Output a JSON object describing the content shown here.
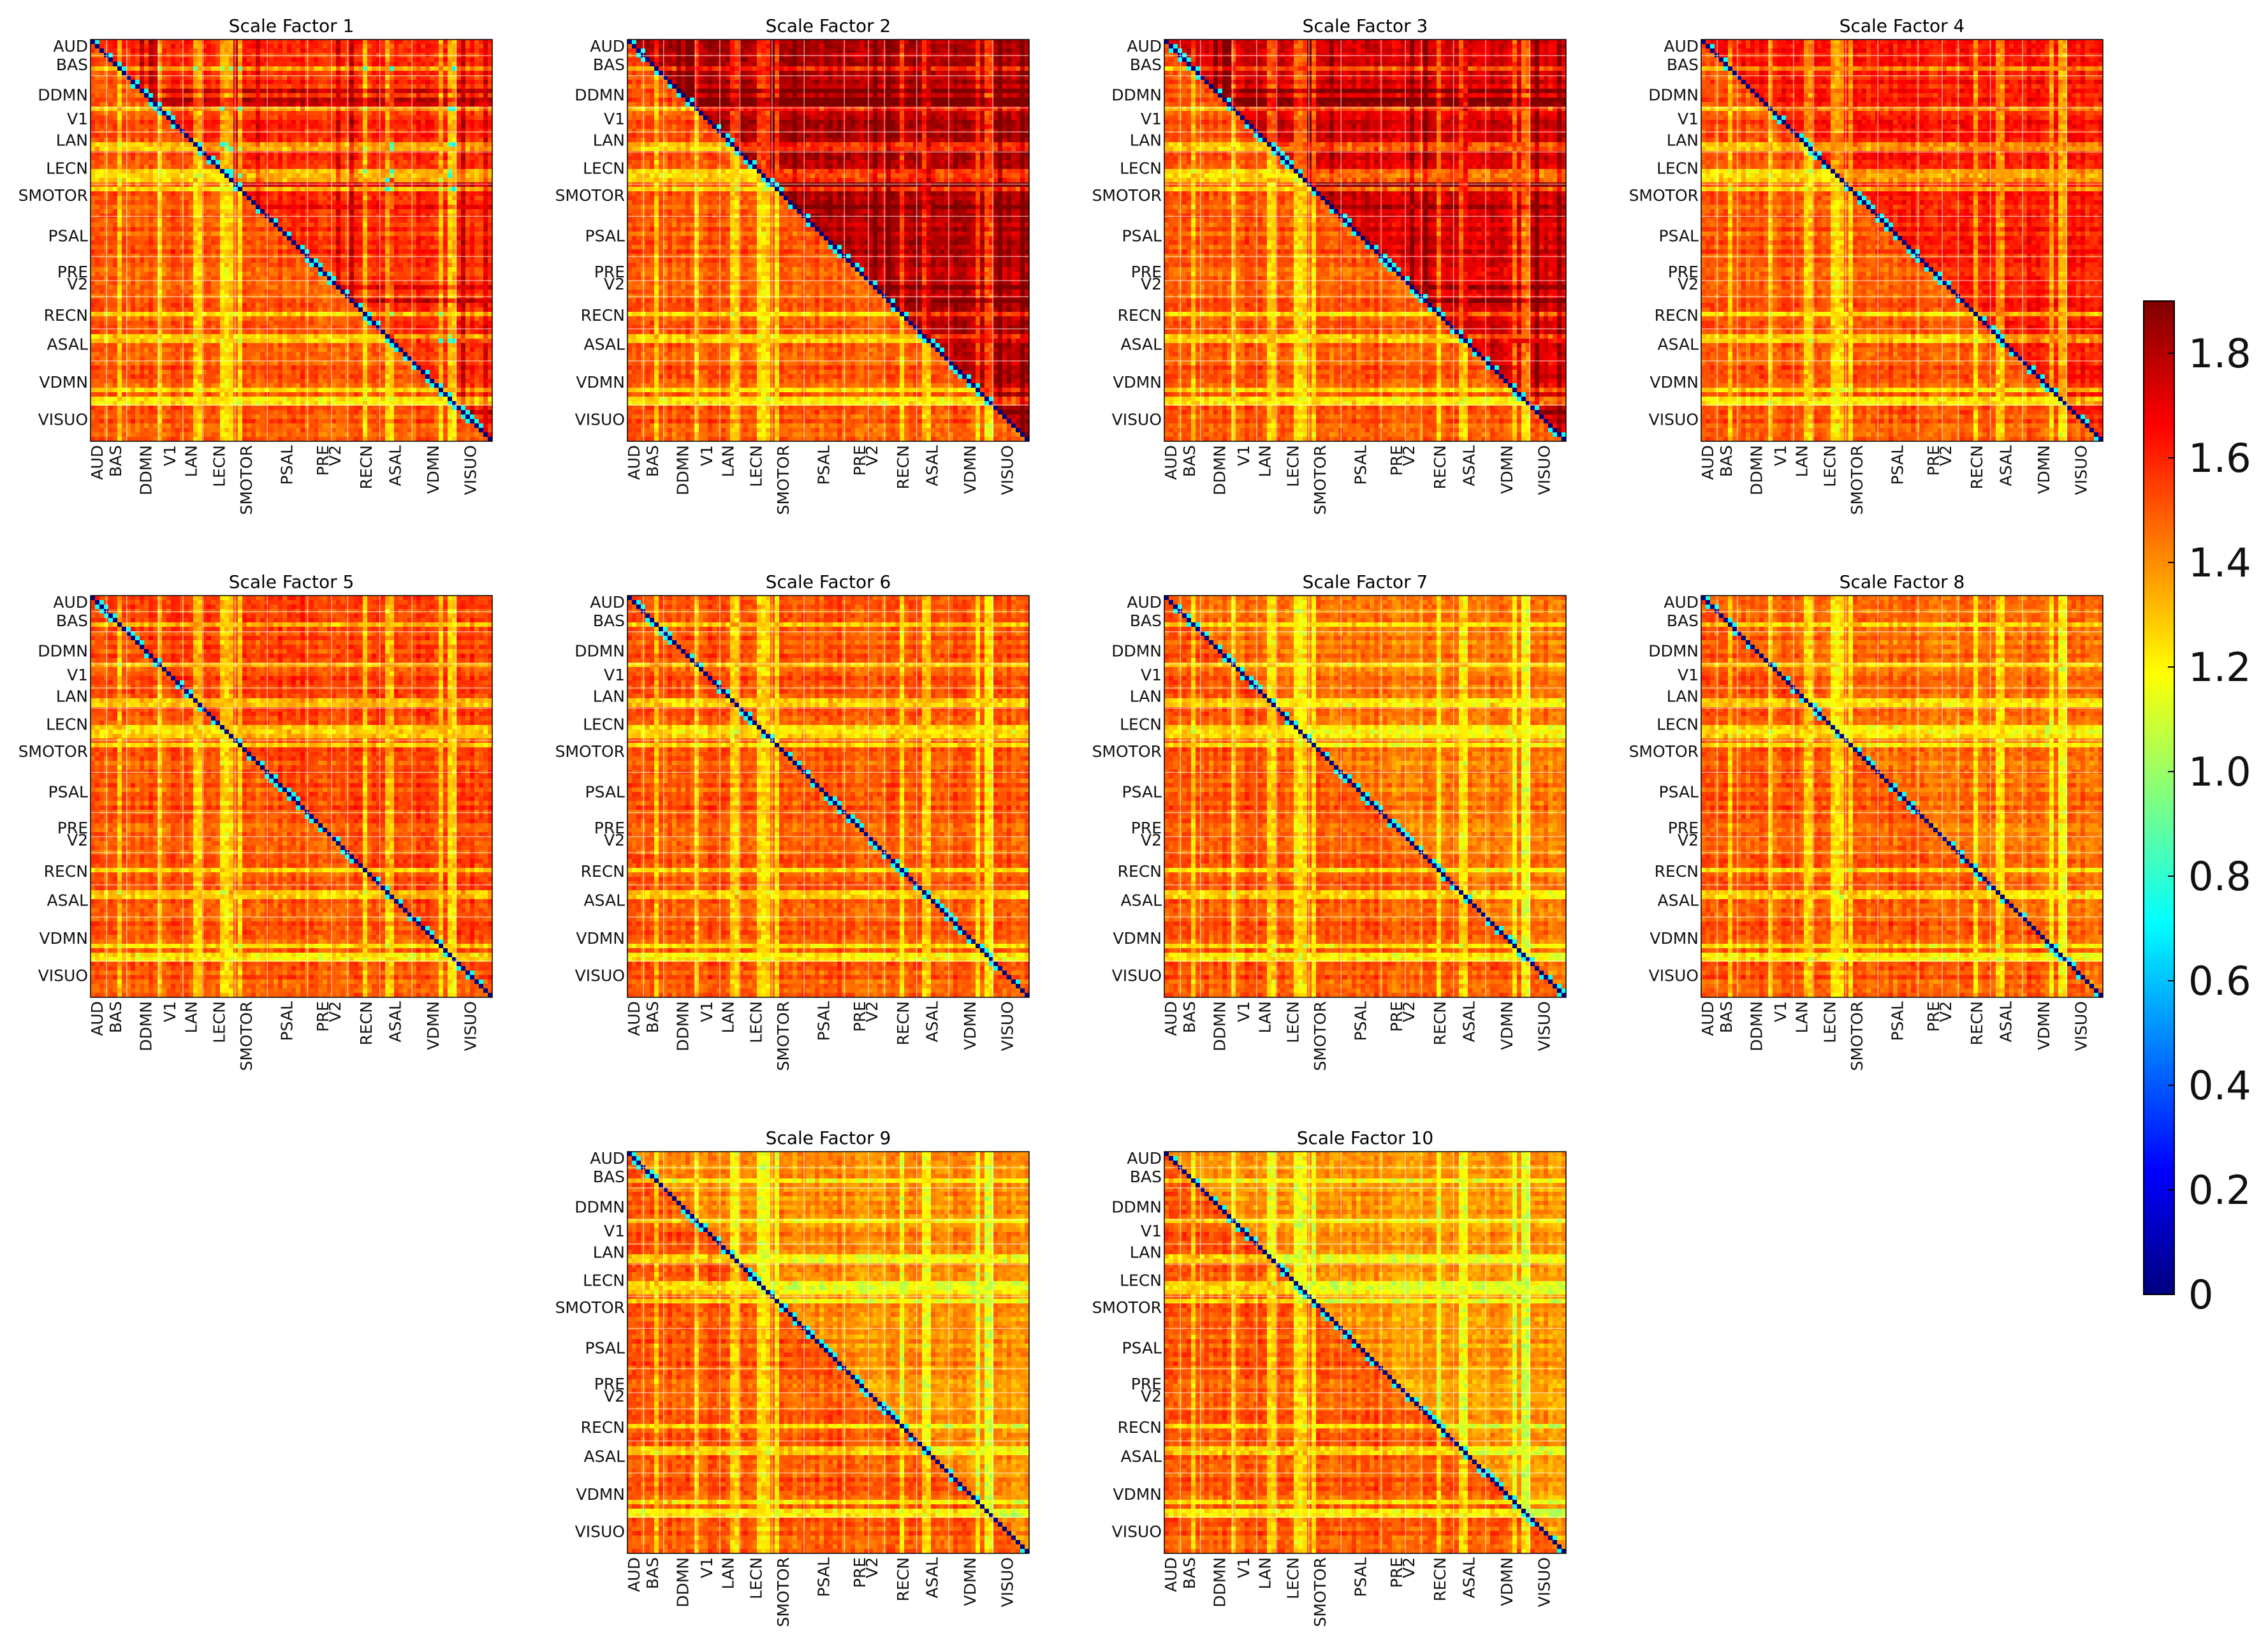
{
  "chart_data": {
    "type": "heatmap",
    "description_units": "distance",
    "row_labels": [
      "AUD",
      "BAS",
      "DDMN",
      "V1",
      "LAN",
      "LECN",
      "SMOTOR",
      "PSAL",
      "PRE",
      "V2",
      "RECN",
      "ASAL",
      "VDMN",
      "VISUO"
    ],
    "col_labels": [
      "AUD",
      "BAS",
      "DDMN",
      "V1",
      "LAN",
      "LECN",
      "SMOTOR",
      "PSAL",
      "PRE",
      "V2",
      "RECN",
      "ASAL",
      "VDMN",
      "VISUO"
    ],
    "n_regions": 90,
    "diagonal_value": 0,
    "colormap": "jet",
    "colorbar": {
      "range": [
        0,
        1.9
      ],
      "ticks": [
        0,
        0.2,
        0.4,
        0.6,
        0.8,
        1.0,
        1.2,
        1.4,
        1.6,
        1.8
      ],
      "tick_labels": [
        "0",
        "0.2",
        "0.4",
        "0.6",
        "0.8",
        "1.0",
        "1.2",
        "1.4",
        "1.6",
        "1.8"
      ]
    },
    "panels": [
      {
        "title": "Scale Factor 1",
        "upper_mean": 1.58,
        "lower_mean": 1.5,
        "dark_blocks": true,
        "cyan_spots": true
      },
      {
        "title": "Scale Factor 2",
        "upper_mean": 1.8,
        "lower_mean": 1.5,
        "dark_blocks": true,
        "cyan_spots": false
      },
      {
        "title": "Scale Factor 3",
        "upper_mean": 1.72,
        "lower_mean": 1.5,
        "dark_blocks": true,
        "cyan_spots": false
      },
      {
        "title": "Scale Factor 4",
        "upper_mean": 1.62,
        "lower_mean": 1.5,
        "dark_blocks": false,
        "cyan_spots": false
      },
      {
        "title": "Scale Factor 5",
        "upper_mean": 1.54,
        "lower_mean": 1.5,
        "dark_blocks": false,
        "cyan_spots": false
      },
      {
        "title": "Scale Factor 6",
        "upper_mean": 1.5,
        "lower_mean": 1.5,
        "dark_blocks": false,
        "cyan_spots": false
      },
      {
        "title": "Scale Factor 7",
        "upper_mean": 1.44,
        "lower_mean": 1.5,
        "dark_blocks": false,
        "cyan_spots": false
      },
      {
        "title": "Scale Factor 8",
        "upper_mean": 1.46,
        "lower_mean": 1.5,
        "dark_blocks": false,
        "cyan_spots": false
      },
      {
        "title": "Scale Factor 9",
        "upper_mean": 1.4,
        "lower_mean": 1.5,
        "dark_blocks": false,
        "cyan_spots": false
      },
      {
        "title": "Scale Factor 10",
        "upper_mean": 1.38,
        "lower_mean": 1.5,
        "dark_blocks": false,
        "cyan_spots": false
      }
    ]
  }
}
